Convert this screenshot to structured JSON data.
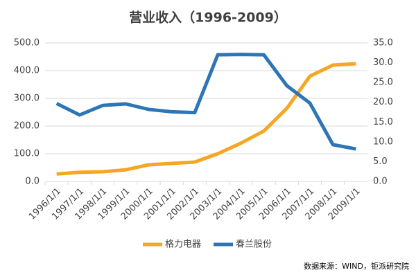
{
  "chart_data": {
    "type": "line",
    "title": "营业收入（1996-2009）",
    "categories": [
      "1996/1/1",
      "1997/1/1",
      "1998/1/1",
      "1999/1/1",
      "2000/1/1",
      "2001/1/1",
      "2002/1/1",
      "2003/1/1",
      "2004/1/1",
      "2005/1/1",
      "2006/1/1",
      "2007/1/1",
      "2008/1/1",
      "2009/1/1"
    ],
    "series": [
      {
        "name": "格力电器",
        "color": "#f5a623",
        "values": [
          27,
          33,
          35,
          42,
          60,
          65,
          70,
          100,
          138,
          182,
          264,
          380,
          420,
          425
        ]
      },
      {
        "name": "春兰股份",
        "color": "#2e75b6",
        "axis": "y2",
        "values": [
          19.7,
          16.8,
          19.2,
          19.6,
          18.2,
          17.6,
          17.4,
          32.0,
          32.1,
          32.0,
          24.2,
          19.8,
          9.3,
          8.2
        ]
      }
    ],
    "ylim": [
      0,
      500
    ],
    "yticks": [
      {
        "value": 0,
        "label": "0.0"
      },
      {
        "value": 100,
        "label": "100.0"
      },
      {
        "value": 200,
        "label": "200.0"
      },
      {
        "value": 300,
        "label": "300.0"
      },
      {
        "value": 400,
        "label": "400.0"
      },
      {
        "value": 500,
        "label": "500.0"
      }
    ],
    "y2lim": [
      0,
      35
    ],
    "y2ticks": [
      {
        "value": 0,
        "label": "0.0"
      },
      {
        "value": 5,
        "label": "5.0"
      },
      {
        "value": 10,
        "label": "10.0"
      },
      {
        "value": 15,
        "label": "15.0"
      },
      {
        "value": 20,
        "label": "20.0"
      },
      {
        "value": 25,
        "label": "25.0"
      },
      {
        "value": 30,
        "label": "30.0"
      },
      {
        "value": 35,
        "label": "35.0"
      }
    ],
    "grid": true,
    "legend": "bottom",
    "source": "数据来源：WIND，钜派研究院"
  }
}
